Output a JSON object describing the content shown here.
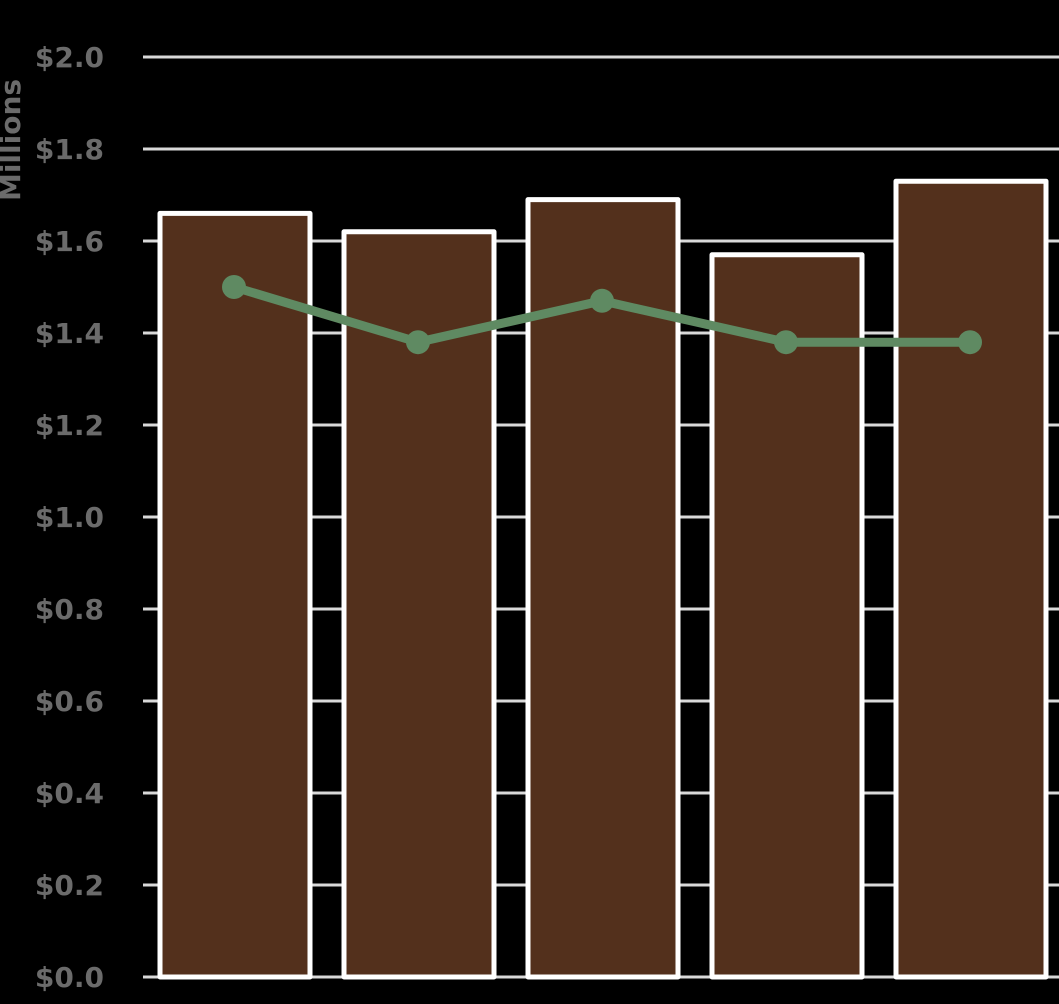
{
  "chart_data": {
    "type": "bar",
    "ylabel": "Millions",
    "ylim": [
      0,
      2.0
    ],
    "yticks": [
      0.0,
      0.2,
      0.4,
      0.6,
      0.8,
      1.0,
      1.2,
      1.4,
      1.6,
      1.8,
      2.0
    ],
    "ytick_labels": [
      "$0.0",
      "$0.2",
      "$0.4",
      "$0.6",
      "$0.8",
      "$1.0",
      "$1.2",
      "$1.4",
      "$1.6",
      "$1.8",
      "$2.0"
    ],
    "grid": true,
    "categories": [
      "",
      "",
      "",
      "",
      ""
    ],
    "series": [
      {
        "type": "bar",
        "values": [
          1.66,
          1.62,
          1.69,
          1.57,
          1.73
        ]
      },
      {
        "type": "line",
        "values": [
          1.5,
          1.38,
          1.47,
          1.38,
          1.38
        ]
      }
    ],
    "colors": {
      "background": "#000000",
      "bar_fill": "#53301c",
      "bar_stroke": "#ffffff",
      "line": "#5f8a62",
      "grid": "#d9d9d9",
      "tick_text": "#6b6b6b"
    }
  }
}
